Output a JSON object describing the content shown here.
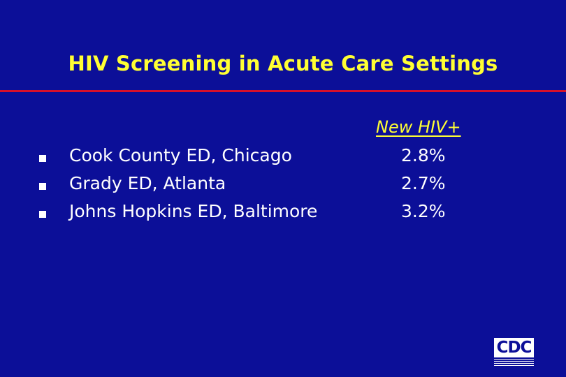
{
  "slide": {
    "title": "HIV Screening in Acute Care Settings",
    "column_header": "New HIV+",
    "rows": [
      {
        "site": "Cook County ED, Chicago",
        "value": "2.8%"
      },
      {
        "site": "Grady ED, Atlanta",
        "value": "2.7%"
      },
      {
        "site": "Johns Hopkins ED, Baltimore",
        "value": "3.2%"
      }
    ],
    "logo": {
      "text": "CDC"
    }
  },
  "colors": {
    "background": "#0c0f98",
    "title": "#ffff33",
    "rule": "#d8102a",
    "body_text": "#ffffff"
  }
}
